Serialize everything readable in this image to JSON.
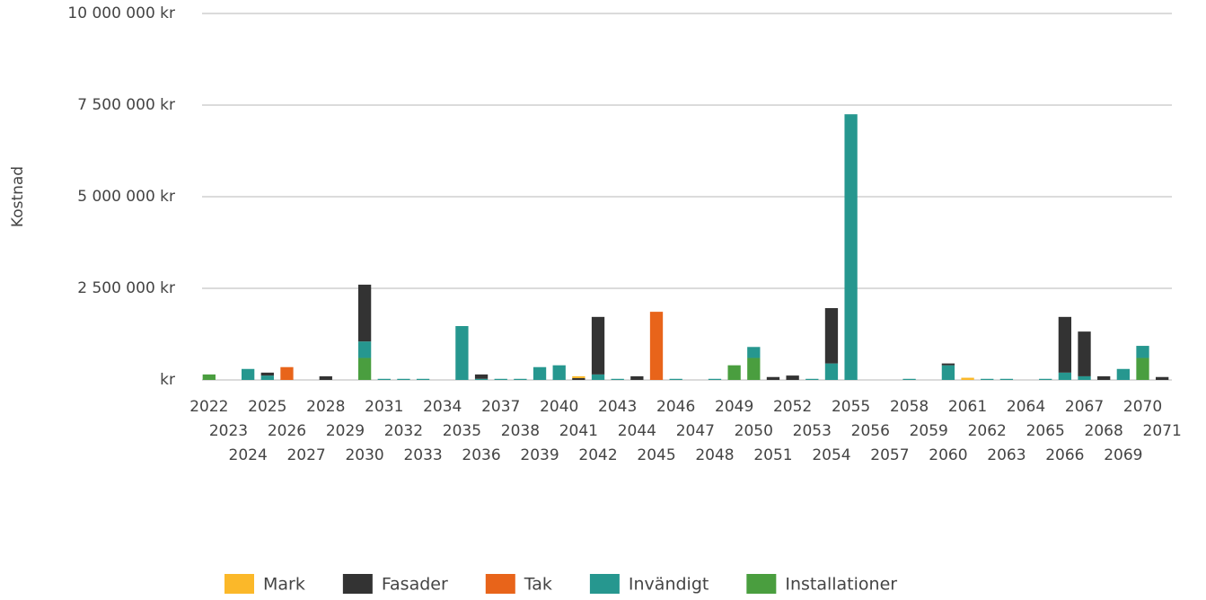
{
  "chart_data": {
    "type": "stacked_bar",
    "y_label": "Kostnad",
    "categories": [
      "2022",
      "2023",
      "2024",
      "2025",
      "2026",
      "2027",
      "2028",
      "2029",
      "2030",
      "2031",
      "2032",
      "2033",
      "2034",
      "2035",
      "2036",
      "2037",
      "2038",
      "2039",
      "2040",
      "2041",
      "2042",
      "2043",
      "2044",
      "2045",
      "2046",
      "2047",
      "2048",
      "2049",
      "2050",
      "2051",
      "2052",
      "2053",
      "2054",
      "2055",
      "2056",
      "2057",
      "2058",
      "2059",
      "2060",
      "2061",
      "2062",
      "2063",
      "2064",
      "2065",
      "2066",
      "2067",
      "2068",
      "2069",
      "2070",
      "2071"
    ],
    "series": [
      {
        "name": "Installationer",
        "color": "#4a9e3f",
        "values": [
          150000,
          0,
          0,
          0,
          0,
          0,
          0,
          0,
          600000,
          0,
          0,
          0,
          0,
          0,
          0,
          0,
          0,
          0,
          0,
          0,
          0,
          0,
          0,
          0,
          0,
          0,
          0,
          400000,
          600000,
          0,
          0,
          0,
          0,
          0,
          0,
          0,
          0,
          0,
          0,
          0,
          0,
          0,
          0,
          0,
          0,
          0,
          0,
          0,
          600000,
          0
        ]
      },
      {
        "name": "Invändigt",
        "color": "#26978f",
        "values": [
          0,
          0,
          300000,
          120000,
          0,
          0,
          0,
          0,
          450000,
          30000,
          30000,
          30000,
          0,
          1470000,
          30000,
          30000,
          30000,
          350000,
          400000,
          0,
          150000,
          30000,
          0,
          0,
          30000,
          0,
          30000,
          0,
          300000,
          0,
          0,
          30000,
          450000,
          7250000,
          0,
          0,
          30000,
          0,
          400000,
          0,
          30000,
          30000,
          0,
          30000,
          200000,
          100000,
          0,
          300000,
          330000,
          0
        ]
      },
      {
        "name": "Tak",
        "color": "#e8641a",
        "values": [
          0,
          0,
          0,
          0,
          350000,
          0,
          0,
          0,
          0,
          0,
          0,
          0,
          0,
          0,
          0,
          0,
          0,
          0,
          0,
          0,
          0,
          0,
          0,
          1860000,
          0,
          0,
          0,
          0,
          0,
          0,
          0,
          0,
          0,
          0,
          0,
          0,
          0,
          0,
          0,
          0,
          0,
          0,
          0,
          0,
          0,
          0,
          0,
          0,
          0,
          0
        ]
      },
      {
        "name": "Fasader",
        "color": "#333333",
        "values": [
          0,
          0,
          0,
          80000,
          0,
          0,
          100000,
          0,
          1550000,
          0,
          0,
          0,
          0,
          0,
          120000,
          0,
          0,
          0,
          0,
          50000,
          1570000,
          0,
          100000,
          0,
          0,
          0,
          0,
          0,
          0,
          80000,
          120000,
          0,
          1510000,
          0,
          0,
          0,
          0,
          0,
          50000,
          0,
          0,
          0,
          0,
          0,
          1520000,
          1220000,
          100000,
          0,
          0,
          80000
        ]
      },
      {
        "name": "Mark",
        "color": "#fbb829",
        "values": [
          0,
          0,
          0,
          0,
          0,
          0,
          0,
          0,
          0,
          0,
          0,
          0,
          0,
          0,
          0,
          0,
          0,
          0,
          0,
          50000,
          0,
          0,
          0,
          0,
          0,
          0,
          0,
          0,
          0,
          0,
          0,
          0,
          0,
          0,
          0,
          0,
          0,
          0,
          0,
          60000,
          0,
          0,
          0,
          0,
          0,
          0,
          0,
          0,
          0,
          0
        ]
      }
    ],
    "legend_order": [
      "Mark",
      "Fasader",
      "Tak",
      "Invändigt",
      "Installationer"
    ],
    "ylim": [
      0,
      10000000
    ],
    "yticks": [
      {
        "value": 0,
        "label": "kr"
      },
      {
        "value": 2500000,
        "label": "2 500 000 kr"
      },
      {
        "value": 5000000,
        "label": "5 000 000 kr"
      },
      {
        "value": 7500000,
        "label": "7 500 000 kr"
      },
      {
        "value": 10000000,
        "label": "10 000 000 kr"
      }
    ],
    "grid": true,
    "legend": "bottom"
  }
}
